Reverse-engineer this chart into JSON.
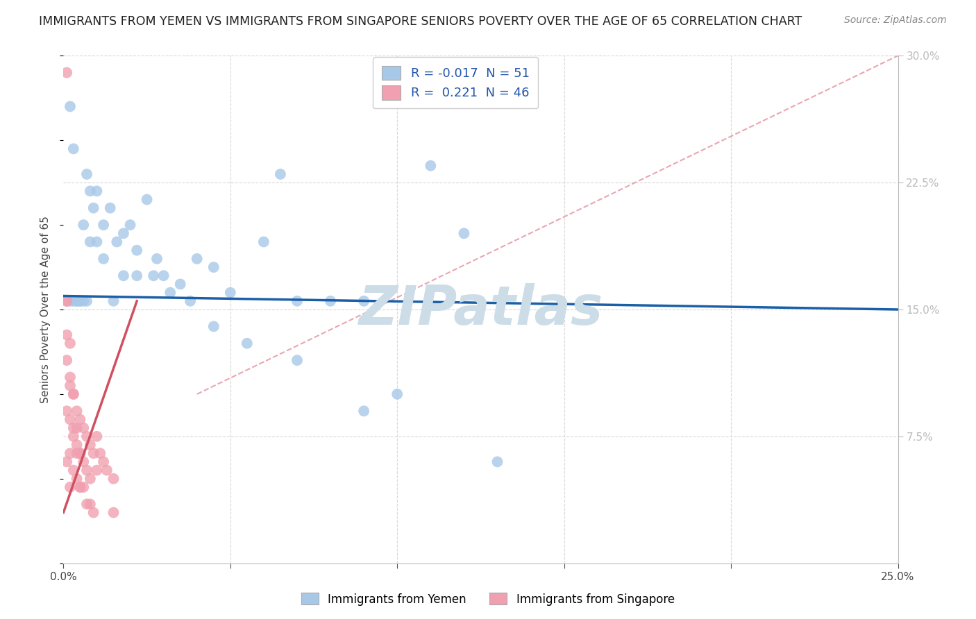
{
  "title": "IMMIGRANTS FROM YEMEN VS IMMIGRANTS FROM SINGAPORE SENIORS POVERTY OVER THE AGE OF 65 CORRELATION CHART",
  "source": "Source: ZipAtlas.com",
  "ylabel": "Seniors Poverty Over the Age of 65",
  "legend_label1": "Immigrants from Yemen",
  "legend_label2": "Immigrants from Singapore",
  "r1": -0.017,
  "n1": 51,
  "r2": 0.221,
  "n2": 46,
  "xmin": 0.0,
  "xmax": 0.25,
  "ymin": 0.0,
  "ymax": 0.3,
  "color_blue": "#a8c8e8",
  "color_pink": "#f0a0b0",
  "line_blue": "#1a5fa8",
  "line_pink": "#d05060",
  "line_dashed_color": "#e08090",
  "watermark": "ZIPatlas",
  "background_color": "#ffffff",
  "watermark_color": "#ccdde8",
  "yemen_x": [
    0.001,
    0.002,
    0.003,
    0.004,
    0.005,
    0.006,
    0.007,
    0.008,
    0.01,
    0.012,
    0.014,
    0.016,
    0.018,
    0.02,
    0.022,
    0.025,
    0.028,
    0.03,
    0.035,
    0.04,
    0.045,
    0.05,
    0.06,
    0.065,
    0.07,
    0.08,
    0.09,
    0.1,
    0.11,
    0.12,
    0.002,
    0.003,
    0.004,
    0.005,
    0.006,
    0.007,
    0.008,
    0.009,
    0.01,
    0.012,
    0.015,
    0.018,
    0.022,
    0.027,
    0.032,
    0.038,
    0.045,
    0.055,
    0.07,
    0.09,
    0.13
  ],
  "yemen_y": [
    0.155,
    0.27,
    0.245,
    0.155,
    0.155,
    0.2,
    0.23,
    0.19,
    0.22,
    0.2,
    0.21,
    0.19,
    0.195,
    0.2,
    0.185,
    0.215,
    0.18,
    0.17,
    0.165,
    0.18,
    0.175,
    0.16,
    0.19,
    0.23,
    0.155,
    0.155,
    0.155,
    0.1,
    0.235,
    0.195,
    0.155,
    0.155,
    0.155,
    0.155,
    0.155,
    0.155,
    0.22,
    0.21,
    0.19,
    0.18,
    0.155,
    0.17,
    0.17,
    0.17,
    0.16,
    0.155,
    0.14,
    0.13,
    0.12,
    0.09,
    0.06
  ],
  "singapore_x": [
    0.001,
    0.001,
    0.001,
    0.001,
    0.002,
    0.002,
    0.002,
    0.002,
    0.003,
    0.003,
    0.003,
    0.004,
    0.004,
    0.004,
    0.005,
    0.005,
    0.005,
    0.006,
    0.006,
    0.007,
    0.007,
    0.008,
    0.008,
    0.009,
    0.01,
    0.01,
    0.011,
    0.012,
    0.013,
    0.015,
    0.001,
    0.001,
    0.002,
    0.002,
    0.003,
    0.003,
    0.004,
    0.004,
    0.005,
    0.005,
    0.006,
    0.007,
    0.008,
    0.009,
    0.015,
    0.001
  ],
  "singapore_y": [
    0.155,
    0.12,
    0.09,
    0.06,
    0.11,
    0.085,
    0.065,
    0.045,
    0.1,
    0.075,
    0.055,
    0.09,
    0.07,
    0.05,
    0.085,
    0.065,
    0.045,
    0.08,
    0.06,
    0.075,
    0.055,
    0.07,
    0.05,
    0.065,
    0.075,
    0.055,
    0.065,
    0.06,
    0.055,
    0.05,
    0.155,
    0.135,
    0.13,
    0.105,
    0.1,
    0.08,
    0.08,
    0.065,
    0.065,
    0.045,
    0.045,
    0.035,
    0.035,
    0.03,
    0.03,
    0.29
  ],
  "yemen_line_x": [
    0.0,
    0.25
  ],
  "yemen_line_y": [
    0.158,
    0.15
  ],
  "singapore_line_x": [
    0.0,
    0.022
  ],
  "singapore_line_y": [
    0.03,
    0.155
  ],
  "diag_line_x": [
    0.04,
    0.25
  ],
  "diag_line_y": [
    0.1,
    0.3
  ]
}
